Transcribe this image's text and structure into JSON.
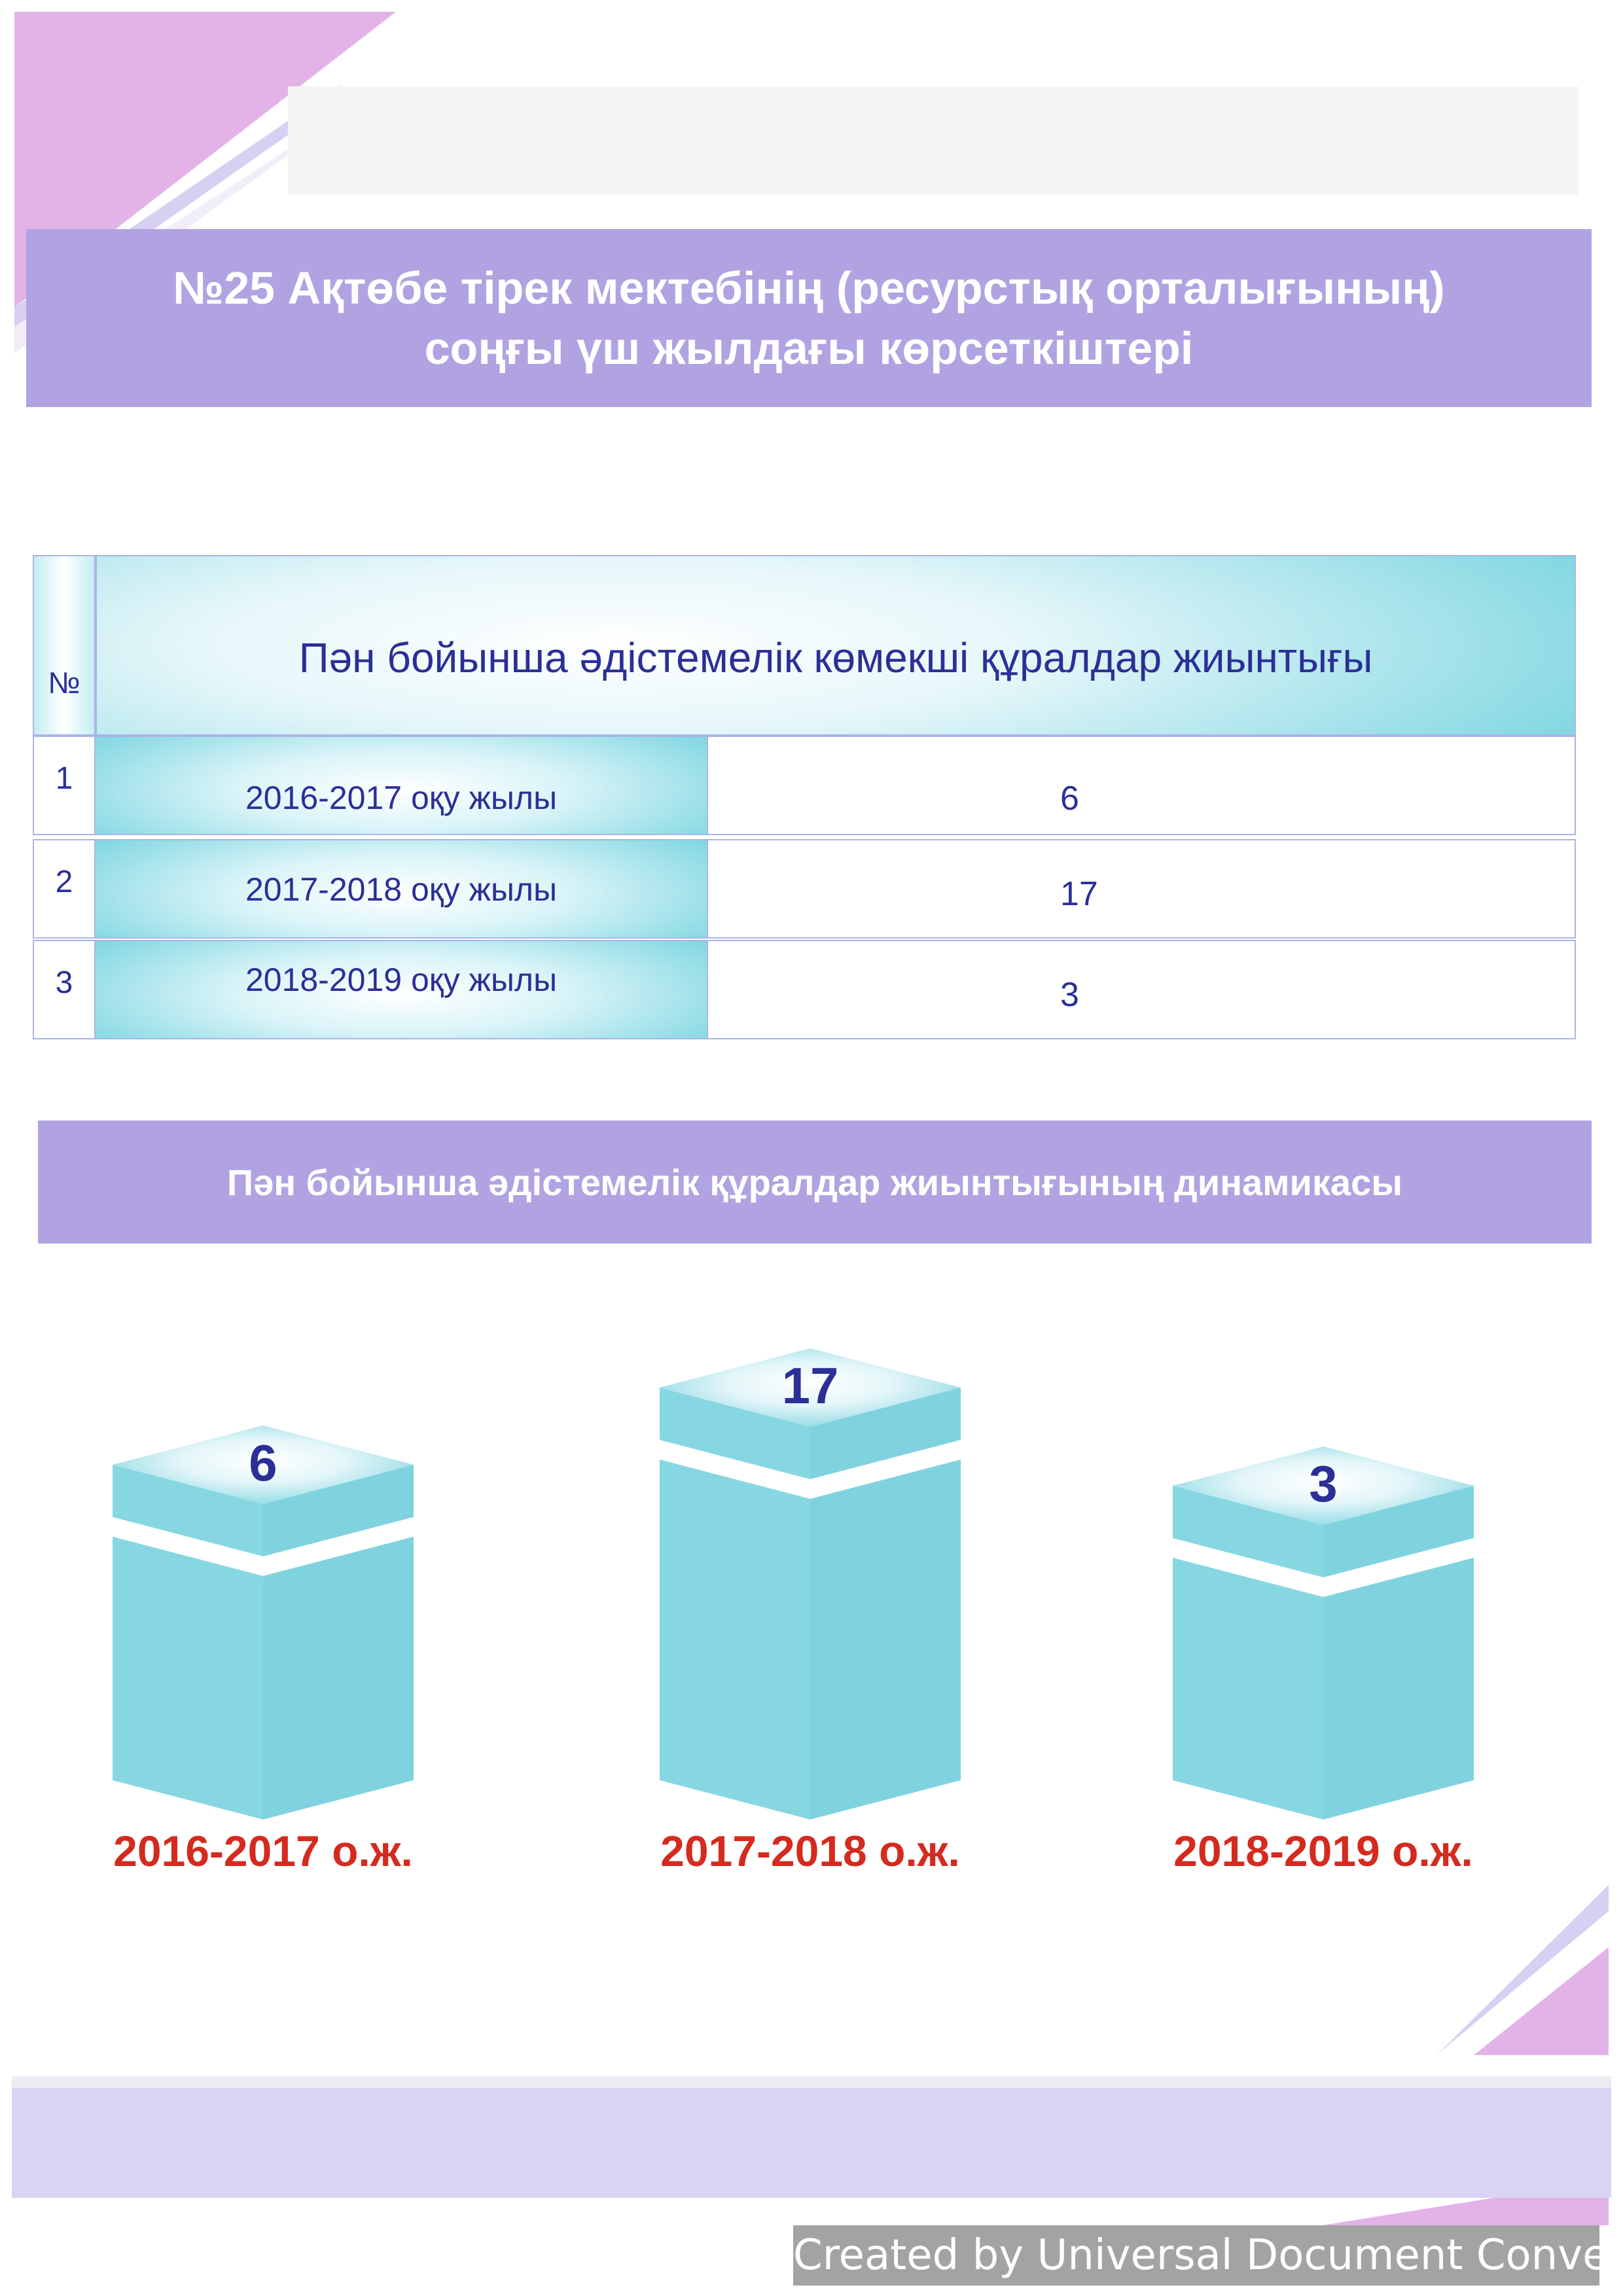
{
  "title": {
    "line1": "№25 Ақтөбе тірек мектебінің (ресурстық орталығының)",
    "line2": "соңғы үш жылдағы көрсеткіштері"
  },
  "table": {
    "header_num": "№",
    "header_main": "Пән бойынша әдістемелік көмекші құралдар жиынтығы",
    "rows": [
      {
        "n": "1",
        "year": "2016-2017 оқу жылы",
        "value": "6"
      },
      {
        "n": "2",
        "year": "2017-2018 оқу жылы",
        "value": "17"
      },
      {
        "n": "3",
        "year": "2018-2019  оқу жылы",
        "value": "3"
      }
    ]
  },
  "subtitle": "Пән бойынша әдістемелік құралдар жиынтығының  динамикасы",
  "chart_data": {
    "type": "bar",
    "categories": [
      "2016-2017 о.ж.",
      "2017-2018 о.ж.",
      "2018-2019 о.ж."
    ],
    "values": [
      6,
      17,
      3
    ],
    "value_labels": [
      "6",
      "17",
      "3"
    ],
    "title": "",
    "xlabel": "",
    "ylabel": "",
    "ylim": [
      0,
      17
    ],
    "grid": false,
    "legend": "none",
    "colors": {
      "box": "#86d7e1",
      "label": "#d52a1e",
      "value": "#2b2f96"
    }
  },
  "watermark": "Created by Universal Document Converter"
}
